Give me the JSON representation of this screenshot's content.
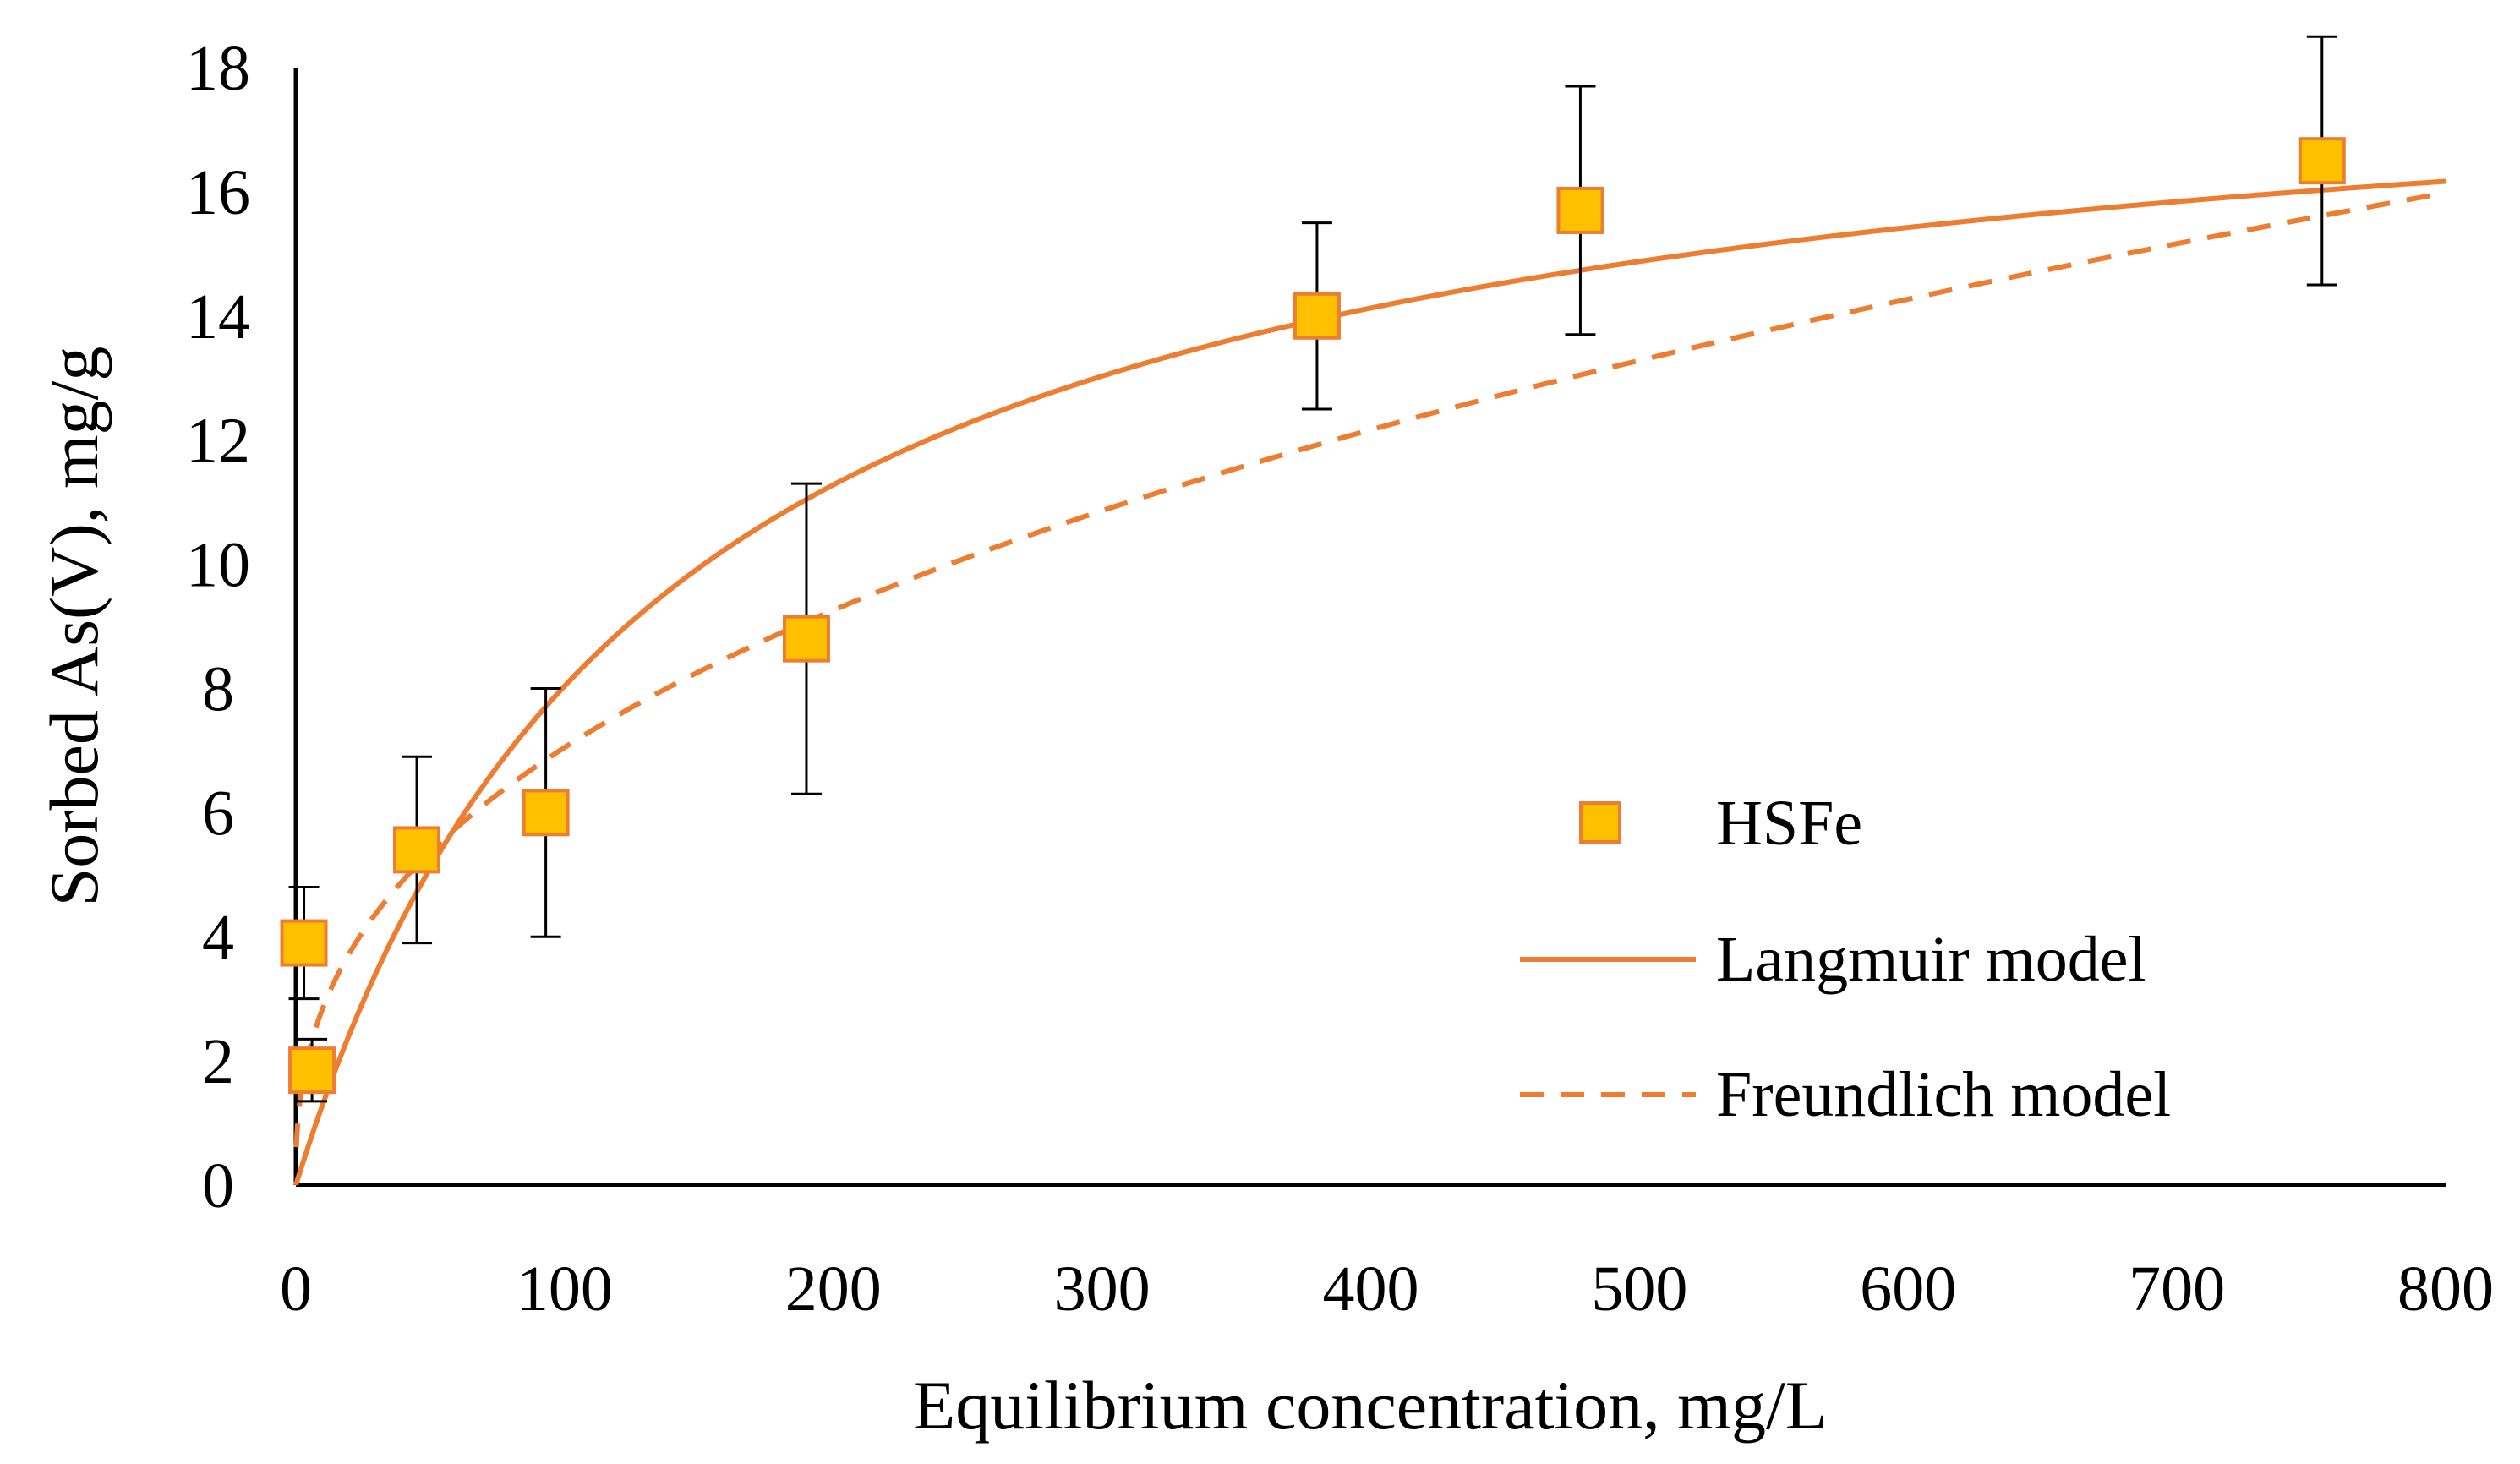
{
  "chart_data": {
    "type": "scatter",
    "title": "",
    "xlabel": "Equilibrium concentration, mg/L",
    "ylabel": "Sorbed As(V), mg/g",
    "xlim": [
      0,
      800
    ],
    "ylim": [
      0,
      18
    ],
    "xticks": [
      "0",
      "100",
      "200",
      "300",
      "400",
      "500",
      "600",
      "700",
      "800"
    ],
    "yticks": [
      "0",
      "2",
      "4",
      "6",
      "8",
      "10",
      "12",
      "14",
      "16",
      "18"
    ],
    "grid": false,
    "legend_position": "bottom-right",
    "series": [
      {
        "name": "HSFe",
        "kind": "points",
        "color": "#FFC000",
        "edge_color": "#ED7D31",
        "error_color": "#000000",
        "x": [
          3,
          6,
          45,
          93,
          190,
          380,
          478,
          754
        ],
        "y": [
          3.9,
          1.85,
          5.4,
          6.0,
          8.8,
          14.0,
          15.7,
          16.5
        ],
        "err": [
          0.9,
          0.5,
          1.5,
          2.0,
          2.5,
          1.5,
          2.0,
          2.0
        ]
      },
      {
        "name": "Langmuir model",
        "kind": "line",
        "style": "solid",
        "color": "#ED7D31",
        "qmax": 18.9,
        "KL": 0.0074
      },
      {
        "name": "Freundlich model",
        "kind": "line",
        "style": "dashed",
        "color": "#ED7D31",
        "KF": 1.15,
        "n": 2.54
      }
    ]
  }
}
